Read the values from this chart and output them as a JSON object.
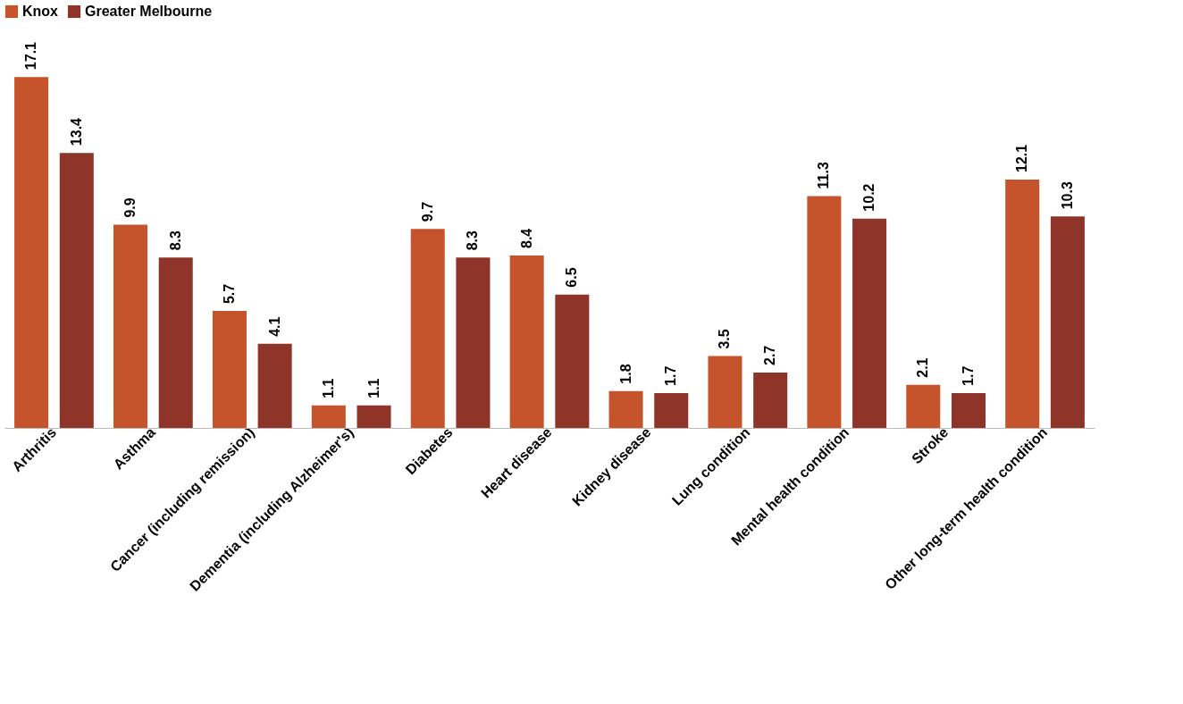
{
  "chart_data": {
    "type": "bar",
    "categories": [
      "Arthritis",
      "Asthma",
      "Cancer (including remission)",
      "Dementia (including Alzheimer's)",
      "Diabetes",
      "Heart disease",
      "Kidney disease",
      "Lung condition",
      "Mental health condition",
      "Stroke",
      "Other long-term health condition"
    ],
    "series": [
      {
        "name": "Knox",
        "color": "#c5542c",
        "values": [
          17.1,
          9.9,
          5.7,
          1.1,
          9.7,
          8.4,
          1.8,
          3.5,
          11.3,
          2.1,
          12.1
        ]
      },
      {
        "name": "Greater Melbourne",
        "color": "#8e3428",
        "values": [
          13.4,
          8.3,
          4.1,
          1.1,
          8.3,
          6.5,
          1.7,
          2.7,
          10.2,
          1.7,
          10.3
        ]
      }
    ],
    "data_labels": true,
    "legend": "top",
    "grid": false
  }
}
